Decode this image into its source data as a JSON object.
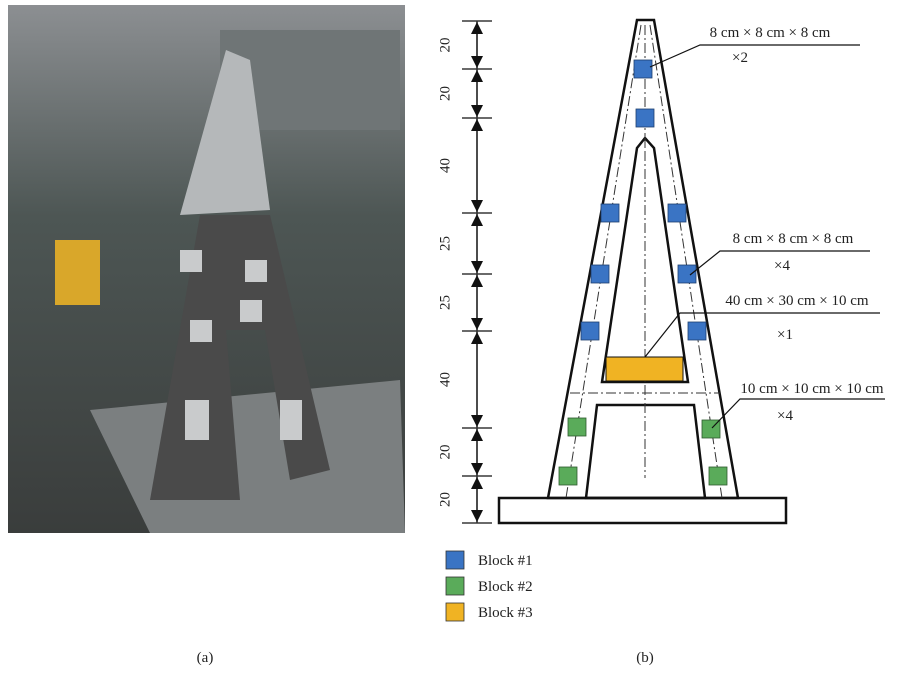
{
  "panels": [
    {
      "caption": "(a)"
    },
    {
      "caption": "(b)"
    }
  ],
  "dimensions": [
    20,
    20,
    40,
    25,
    25,
    40,
    20,
    20
  ],
  "annotations": [
    {
      "size": "8 cm × 8 cm × 8 cm",
      "count": "×2"
    },
    {
      "size": "8 cm × 8 cm × 8 cm",
      "count": "×4"
    },
    {
      "size": "40 cm × 30 cm × 10 cm",
      "count": "×1"
    },
    {
      "size": "10 cm × 10 cm × 10 cm",
      "count": "×4"
    }
  ],
  "legend": [
    "Block #1",
    "Block #2",
    "Block #3"
  ]
}
